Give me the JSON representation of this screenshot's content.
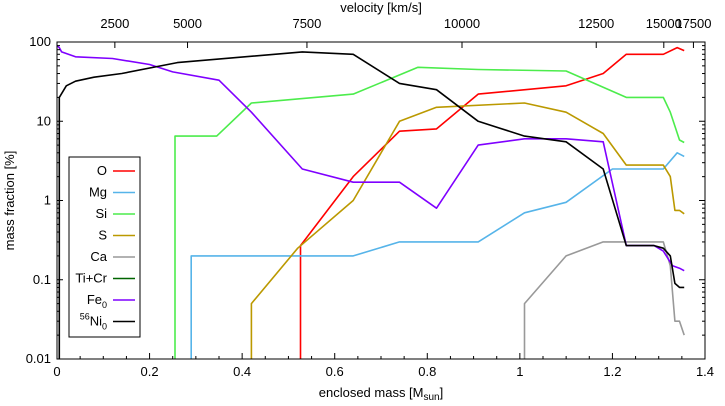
{
  "chart_data": {
    "type": "line",
    "title": "",
    "xlabel": "enclosed mass [M",
    "xlabel_sub": "sun",
    "xlabel_close": "]",
    "ylabel": "mass fraction [%]",
    "top_axis_label": "velocity [km/s]",
    "xlim": [
      0,
      1.4
    ],
    "ylim": [
      0.01,
      100
    ],
    "yscale": "log",
    "grid": false,
    "legend_position": "left",
    "x_ticks": [
      0,
      0.2,
      0.4,
      0.6,
      0.8,
      1,
      1.2,
      1.4
    ],
    "x_tick_labels": [
      "0",
      "0.2",
      "0.4",
      "0.6",
      "0.8",
      "1",
      "1.2",
      "1.4"
    ],
    "y_ticks": [
      0.01,
      0.1,
      1,
      10,
      100
    ],
    "y_tick_labels": [
      "0.01",
      "0.1",
      "1",
      "10",
      "100"
    ],
    "top_ticks": [
      {
        "label": "2500",
        "mass": 0.125
      },
      {
        "label": "5000",
        "mass": 0.282
      },
      {
        "label": "7500",
        "mass": 0.54
      },
      {
        "label": "10000",
        "mass": 0.875
      },
      {
        "label": "12500",
        "mass": 1.165
      },
      {
        "label": "15000",
        "mass": 1.311
      },
      {
        "label": "17500",
        "mass": 1.375
      }
    ],
    "series": [
      {
        "name": "O",
        "name_sup": "",
        "color": "#ff0000",
        "x": [
          0.526,
          0.526,
          0.64,
          0.74,
          0.82,
          0.91,
          1.1,
          1.18,
          1.23,
          1.31,
          1.34,
          1.355
        ],
        "y": [
          0.01,
          0.27,
          2.0,
          7.5,
          8.0,
          22,
          28,
          40,
          70,
          70,
          85,
          78
        ]
      },
      {
        "name": "Mg",
        "name_sup": "",
        "color": "#56b4e9",
        "x": [
          0.29,
          0.29,
          0.64,
          0.74,
          0.91,
          1.01,
          1.1,
          1.2,
          1.31,
          1.34,
          1.355
        ],
        "y": [
          0.01,
          0.2,
          0.2,
          0.3,
          0.3,
          0.7,
          0.95,
          2.5,
          2.5,
          4.0,
          3.6
        ]
      },
      {
        "name": "Si",
        "name_sup": "",
        "color": "#4cec4c",
        "x": [
          0.255,
          0.255,
          0.345,
          0.42,
          0.64,
          0.78,
          0.91,
          1.1,
          1.23,
          1.31,
          1.325,
          1.345,
          1.355
        ],
        "y": [
          0.01,
          6.5,
          6.5,
          17,
          22,
          48,
          45,
          43,
          20,
          20,
          13,
          5.8,
          5.4
        ]
      },
      {
        "name": "S",
        "name_sup": "",
        "color": "#bb9900",
        "x": [
          0.42,
          0.42,
          0.52,
          0.64,
          0.74,
          0.82,
          1.01,
          1.1,
          1.18,
          1.23,
          1.31,
          1.325,
          1.335,
          1.345,
          1.355
        ],
        "y": [
          0.01,
          0.05,
          0.25,
          1.0,
          10,
          15,
          17,
          13,
          7,
          2.8,
          2.8,
          2.0,
          0.75,
          0.75,
          0.68
        ]
      },
      {
        "name": "Ca",
        "name_sup": "",
        "color": "#999999",
        "x": [
          1.01,
          1.01,
          1.1,
          1.18,
          1.31,
          1.325,
          1.335,
          1.345,
          1.355
        ],
        "y": [
          0.01,
          0.05,
          0.2,
          0.3,
          0.3,
          0.15,
          0.03,
          0.03,
          0.02
        ]
      },
      {
        "name": "Ti+Cr",
        "name_sup": "",
        "color": "#006400",
        "x": [],
        "y": []
      },
      {
        "name": "Fe",
        "name_sub": "0",
        "name_sup": "",
        "color": "#7f00ff",
        "x": [
          0.0,
          0.005,
          0.01,
          0.04,
          0.12,
          0.2,
          0.25,
          0.35,
          0.42,
          0.53,
          0.64,
          0.74,
          0.82,
          0.91,
          1.01,
          1.1,
          1.18,
          1.23,
          1.29,
          1.31,
          1.33,
          1.345,
          1.355
        ],
        "y": [
          90,
          85,
          75,
          65,
          62,
          52,
          42,
          33,
          13,
          2.5,
          1.7,
          1.7,
          0.8,
          5.0,
          6.0,
          6.0,
          5.5,
          0.27,
          0.27,
          0.23,
          0.15,
          0.14,
          0.13
        ]
      },
      {
        "name": "Ni",
        "name_sub": "0",
        "name_sup": "56",
        "color": "#000000",
        "x": [
          0.005,
          0.005,
          0.02,
          0.04,
          0.08,
          0.14,
          0.26,
          0.53,
          0.64,
          0.74,
          0.82,
          0.91,
          1.01,
          1.1,
          1.18,
          1.23,
          1.29,
          1.31,
          1.325,
          1.335,
          1.345,
          1.355
        ],
        "y": [
          0.01,
          20,
          28,
          32,
          36,
          40,
          55,
          75,
          70,
          30,
          25,
          10,
          6.5,
          5.5,
          2.5,
          0.27,
          0.27,
          0.25,
          0.2,
          0.09,
          0.08,
          0.08
        ]
      }
    ]
  }
}
